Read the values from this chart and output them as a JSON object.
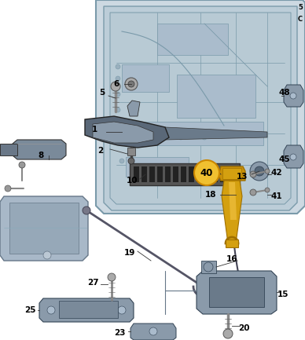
{
  "bg_color": "#ffffff",
  "figsize": [
    3.88,
    4.33
  ],
  "dpi": 100,
  "door_fill": "#cdd9e2",
  "door_stroke": "#7a9aaa",
  "door_inner_fill": "#bccdd8",
  "part_dark": "#5a6878",
  "part_mid": "#8a9aaa",
  "part_light": "#aabbcc",
  "golden": "#d4a010",
  "golden_dark": "#a07800",
  "golden_light": "#f0c840",
  "highlight_yellow": "#f0c030",
  "label_fs": 7.5,
  "label_bold": true
}
